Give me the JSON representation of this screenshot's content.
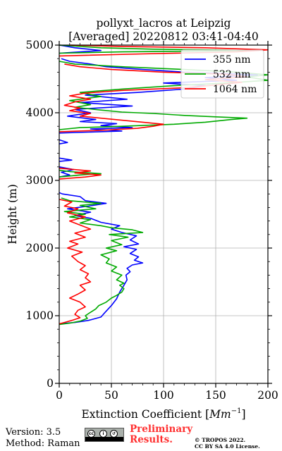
{
  "chart_data": {
    "type": "line",
    "title_line1": "pollyxt_lacros at Leipzig",
    "title_line2": "[Averaged] 20220812 03:41-04:40",
    "xlabel": "Extinction Coefficient [Mm⁻¹]",
    "ylabel": "Height (m)",
    "xlim": [
      0,
      200
    ],
    "ylim": [
      0,
      5000
    ],
    "xticks": [
      "0",
      "50",
      "100",
      "150",
      "200"
    ],
    "yticks": [
      "0",
      "1000",
      "2000",
      "3000",
      "4000",
      "5000"
    ],
    "grid": true,
    "legend_position": "top-right",
    "series": [
      {
        "name": "355 nm",
        "color": "#0000ff",
        "points": [
          [
            0,
            880
          ],
          [
            15,
            900
          ],
          [
            28,
            930
          ],
          [
            40,
            980
          ],
          [
            44,
            1050
          ],
          [
            50,
            1150
          ],
          [
            55,
            1250
          ],
          [
            58,
            1350
          ],
          [
            62,
            1450
          ],
          [
            65,
            1530
          ],
          [
            64,
            1600
          ],
          [
            68,
            1650
          ],
          [
            65,
            1700
          ],
          [
            70,
            1750
          ],
          [
            80,
            1780
          ],
          [
            72,
            1820
          ],
          [
            76,
            1870
          ],
          [
            68,
            1920
          ],
          [
            74,
            1980
          ],
          [
            62,
            2020
          ],
          [
            76,
            2060
          ],
          [
            68,
            2120
          ],
          [
            74,
            2180
          ],
          [
            60,
            2230
          ],
          [
            50,
            2280
          ],
          [
            58,
            2330
          ],
          [
            40,
            2380
          ],
          [
            30,
            2440
          ],
          [
            15,
            2480
          ],
          [
            30,
            2530
          ],
          [
            8,
            2580
          ],
          [
            28,
            2620
          ],
          [
            45,
            2660
          ],
          [
            25,
            2700
          ],
          [
            20,
            2760
          ],
          [
            3,
            2800
          ],
          [
            0,
            2820
          ],
          [
            null,
            null
          ],
          [
            0,
            3050
          ],
          [
            10,
            3080
          ],
          [
            2,
            3120
          ],
          [
            14,
            3160
          ],
          [
            0,
            3200
          ],
          [
            null,
            null
          ],
          [
            0,
            3280
          ],
          [
            12,
            3300
          ],
          [
            0,
            3330
          ],
          [
            null,
            null
          ],
          [
            0,
            3540
          ],
          [
            8,
            3560
          ],
          [
            0,
            3600
          ],
          [
            null,
            null
          ],
          [
            0,
            3700
          ],
          [
            60,
            3730
          ],
          [
            30,
            3760
          ],
          [
            70,
            3780
          ],
          [
            40,
            3810
          ],
          [
            55,
            3840
          ],
          [
            20,
            3870
          ],
          [
            35,
            3900
          ],
          [
            8,
            3950
          ],
          [
            30,
            4000
          ],
          [
            15,
            4050
          ],
          [
            70,
            4100
          ],
          [
            20,
            4150
          ],
          [
            65,
            4200
          ],
          [
            25,
            4260
          ],
          [
            75,
            4300
          ],
          [
            120,
            4350
          ],
          [
            140,
            4400
          ],
          [
            100,
            4440
          ],
          [
            170,
            4480
          ],
          [
            140,
            4520
          ],
          [
            190,
            4560
          ],
          [
            120,
            4600
          ],
          [
            80,
            4640
          ],
          [
            45,
            4680
          ],
          [
            30,
            4720
          ],
          [
            10,
            4760
          ],
          [
            2,
            4800
          ],
          [
            null,
            null
          ],
          [
            0,
            4880
          ],
          [
            40,
            4920
          ],
          [
            15,
            4960
          ],
          [
            0,
            5000
          ]
        ]
      },
      {
        "name": "532 nm",
        "color": "#00aa00",
        "points": [
          [
            0,
            870
          ],
          [
            10,
            890
          ],
          [
            20,
            920
          ],
          [
            27,
            960
          ],
          [
            25,
            1000
          ],
          [
            30,
            1050
          ],
          [
            35,
            1100
          ],
          [
            38,
            1150
          ],
          [
            45,
            1200
          ],
          [
            50,
            1260
          ],
          [
            55,
            1300
          ],
          [
            60,
            1350
          ],
          [
            62,
            1400
          ],
          [
            58,
            1450
          ],
          [
            62,
            1480
          ],
          [
            55,
            1530
          ],
          [
            60,
            1600
          ],
          [
            50,
            1660
          ],
          [
            55,
            1720
          ],
          [
            45,
            1780
          ],
          [
            48,
            1840
          ],
          [
            40,
            1900
          ],
          [
            55,
            1960
          ],
          [
            45,
            2000
          ],
          [
            60,
            2050
          ],
          [
            50,
            2110
          ],
          [
            66,
            2160
          ],
          [
            48,
            2200
          ],
          [
            80,
            2230
          ],
          [
            70,
            2270
          ],
          [
            50,
            2300
          ],
          [
            40,
            2330
          ],
          [
            20,
            2370
          ],
          [
            30,
            2420
          ],
          [
            10,
            2460
          ],
          [
            25,
            2500
          ],
          [
            5,
            2540
          ],
          [
            35,
            2580
          ],
          [
            20,
            2630
          ],
          [
            40,
            2660
          ],
          [
            10,
            2700
          ],
          [
            2,
            2740
          ],
          [
            null,
            null
          ],
          [
            0,
            3050
          ],
          [
            20,
            3080
          ],
          [
            40,
            3100
          ],
          [
            10,
            3130
          ],
          [
            0,
            3150
          ],
          [
            null,
            null
          ],
          [
            0,
            3750
          ],
          [
            20,
            3780
          ],
          [
            60,
            3800
          ],
          [
            110,
            3830
          ],
          [
            140,
            3860
          ],
          [
            165,
            3900
          ],
          [
            180,
            3920
          ],
          [
            150,
            3940
          ],
          [
            120,
            3960
          ],
          [
            90,
            3990
          ],
          [
            60,
            4010
          ],
          [
            40,
            4040
          ],
          [
            15,
            4080
          ],
          [
            30,
            4120
          ],
          [
            10,
            4180
          ],
          [
            40,
            4240
          ],
          [
            20,
            4300
          ],
          [
            60,
            4350
          ],
          [
            110,
            4400
          ],
          [
            160,
            4440
          ],
          [
            200,
            4480
          ],
          [
            180,
            4530
          ],
          [
            200,
            4560
          ],
          [
            170,
            4600
          ],
          [
            120,
            4640
          ],
          [
            60,
            4680
          ],
          [
            15,
            4720
          ],
          [
            0,
            4760
          ],
          [
            null,
            null
          ],
          [
            0,
            4880
          ],
          [
            60,
            4900
          ],
          [
            190,
            4920
          ],
          [
            90,
            4940
          ],
          [
            40,
            4960
          ],
          [
            0,
            5000
          ]
        ]
      },
      {
        "name": "1064 nm",
        "color": "#ff0000",
        "points": [
          [
            0,
            880
          ],
          [
            5,
            900
          ],
          [
            12,
            930
          ],
          [
            20,
            970
          ],
          [
            15,
            1020
          ],
          [
            18,
            1080
          ],
          [
            25,
            1130
          ],
          [
            20,
            1200
          ],
          [
            10,
            1260
          ],
          [
            18,
            1320
          ],
          [
            25,
            1380
          ],
          [
            20,
            1450
          ],
          [
            30,
            1500
          ],
          [
            25,
            1560
          ],
          [
            28,
            1620
          ],
          [
            20,
            1680
          ],
          [
            25,
            1740
          ],
          [
            18,
            1800
          ],
          [
            12,
            1880
          ],
          [
            22,
            1940
          ],
          [
            8,
            2000
          ],
          [
            18,
            2060
          ],
          [
            10,
            2100
          ],
          [
            25,
            2160
          ],
          [
            15,
            2220
          ],
          [
            30,
            2280
          ],
          [
            20,
            2340
          ],
          [
            10,
            2400
          ],
          [
            25,
            2460
          ],
          [
            8,
            2520
          ],
          [
            18,
            2580
          ],
          [
            5,
            2620
          ],
          [
            12,
            2680
          ],
          [
            0,
            2720
          ],
          [
            null,
            null
          ],
          [
            0,
            3020
          ],
          [
            25,
            3050
          ],
          [
            40,
            3080
          ],
          [
            15,
            3110
          ],
          [
            30,
            3140
          ],
          [
            0,
            3180
          ],
          [
            null,
            null
          ],
          [
            0,
            3720
          ],
          [
            40,
            3740
          ],
          [
            75,
            3770
          ],
          [
            90,
            3800
          ],
          [
            100,
            3830
          ],
          [
            80,
            3860
          ],
          [
            60,
            3890
          ],
          [
            40,
            3920
          ],
          [
            20,
            3950
          ],
          [
            30,
            3990
          ],
          [
            10,
            4030
          ],
          [
            20,
            4070
          ],
          [
            5,
            4110
          ],
          [
            15,
            4160
          ],
          [
            30,
            4200
          ],
          [
            10,
            4250
          ],
          [
            25,
            4290
          ],
          [
            60,
            4330
          ],
          [
            120,
            4370
          ],
          [
            150,
            4410
          ],
          [
            175,
            4450
          ],
          [
            140,
            4490
          ],
          [
            180,
            4530
          ],
          [
            160,
            4570
          ],
          [
            100,
            4600
          ],
          [
            50,
            4640
          ],
          [
            20,
            4680
          ],
          [
            5,
            4720
          ],
          [
            null,
            null
          ],
          [
            0,
            4840
          ],
          [
            80,
            4870
          ],
          [
            170,
            4900
          ],
          [
            200,
            4930
          ],
          [
            140,
            4960
          ],
          [
            60,
            4980
          ],
          [
            10,
            5000
          ]
        ]
      }
    ]
  },
  "footer": {
    "version": "Version: 3.5",
    "method": "Method: Raman",
    "preliminary_line1": "Preliminary",
    "preliminary_line2": "Results.",
    "copyright_line1": "© TROPOS 2022.",
    "copyright_line2": "CC BY SA 4.0 License.",
    "license_badge": "cc-by-sa-badge"
  }
}
